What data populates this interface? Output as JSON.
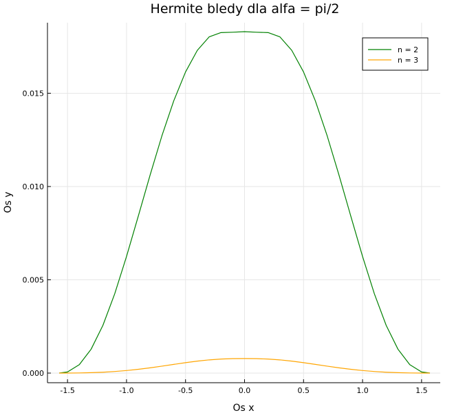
{
  "chart_data": {
    "type": "line",
    "title": "Hermite bledy dla alfa = pi/2",
    "xlabel": "Os x",
    "ylabel": "Os y",
    "xlim": [
      -1.5708,
      1.5708
    ],
    "ylim": [
      0,
      0.0183
    ],
    "xticks": [
      -1.5,
      -1.0,
      -0.5,
      0.0,
      0.5,
      1.0,
      1.5
    ],
    "xtick_labels": [
      "-1.5",
      "-1.0",
      "-0.5",
      "0.0",
      "0.5",
      "1.0",
      "1.5"
    ],
    "yticks": [
      0,
      0.005,
      0.01,
      0.015
    ],
    "ytick_labels": [
      "0.000",
      "0.005",
      "0.010",
      "0.015"
    ],
    "grid": true,
    "legend_position": "top-right",
    "x": [
      -1.5708,
      -1.5,
      -1.4,
      -1.3,
      -1.2,
      -1.1,
      -1.0,
      -0.9,
      -0.8,
      -0.7,
      -0.6,
      -0.5,
      -0.4,
      -0.3,
      -0.2,
      -0.1,
      0.0,
      0.1,
      0.2,
      0.3,
      0.4,
      0.5,
      0.6,
      0.7,
      0.8,
      0.9,
      1.0,
      1.1,
      1.2,
      1.3,
      1.4,
      1.5,
      1.5708
    ],
    "series": [
      {
        "name": "n = 2",
        "color": "#008000",
        "values": [
          0.0,
          6e-05,
          0.00045,
          0.00128,
          0.00256,
          0.00425,
          0.00625,
          0.00842,
          0.01062,
          0.01272,
          0.01459,
          0.01614,
          0.0173,
          0.01802,
          0.01825,
          0.01827,
          0.0183,
          0.01827,
          0.01825,
          0.01802,
          0.0173,
          0.01614,
          0.01459,
          0.01272,
          0.01062,
          0.00842,
          0.00625,
          0.00425,
          0.00256,
          0.00128,
          0.00045,
          6e-05,
          0.0
        ]
      },
      {
        "name": "n = 3",
        "color": "#ffa500",
        "values": [
          0.0,
          1e-06,
          7e-06,
          2.2e-05,
          4.7e-05,
          8.5e-05,
          0.000137,
          0.000203,
          0.000282,
          0.000371,
          0.000465,
          0.000558,
          0.000641,
          0.000707,
          0.000751,
          0.000775,
          0.00078,
          0.000775,
          0.000751,
          0.000707,
          0.000641,
          0.000558,
          0.000465,
          0.000371,
          0.000282,
          0.000203,
          0.000137,
          8.5e-05,
          4.7e-05,
          2.2e-05,
          7e-06,
          1e-06,
          0.0
        ]
      }
    ]
  }
}
